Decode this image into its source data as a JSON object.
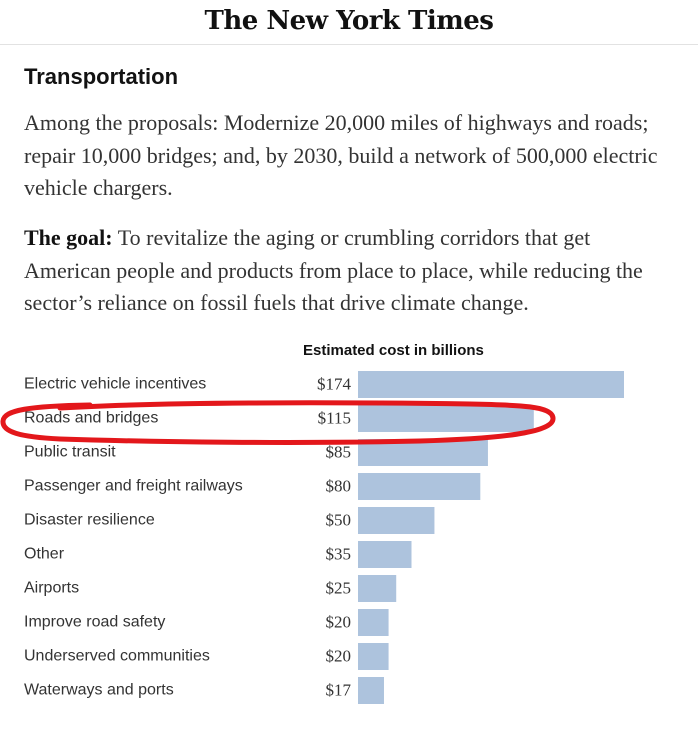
{
  "masthead": {
    "logo": "The New York Times"
  },
  "section": {
    "heading": "Transportation",
    "paragraph1": "Among the proposals: Modernize 20,000 miles of highways and roads; repair 10,000 bridges; and, by 2030, build a network of 500,000 electric vehicle chargers.",
    "goal_label": "The goal:",
    "goal_text": " To revitalize the aging or crumbling corridors that get American people and products from place to place, while reducing the sector’s reliance on fossil fuels that drive climate change."
  },
  "chart_data": {
    "type": "bar",
    "orientation": "horizontal",
    "title": "Estimated cost in billions",
    "categories": [
      "Electric vehicle incentives",
      "Roads and bridges",
      "Public transit",
      "Passenger and freight railways",
      "Disaster resilience",
      "Other",
      "Airports",
      "Improve road safety",
      "Underserved communities",
      "Waterways and ports"
    ],
    "values": [
      174,
      115,
      85,
      80,
      50,
      35,
      25,
      20,
      20,
      17
    ],
    "value_labels": [
      "$174",
      "$115",
      "$85",
      "$80",
      "$50",
      "$35",
      "$25",
      "$20",
      "$20",
      "$17"
    ],
    "bar_color": "#adc3dd",
    "highlight": {
      "category": "Roads and bridges",
      "color": "#e3171b",
      "style": "hand-drawn circle"
    },
    "grid": false,
    "legend": "none"
  }
}
